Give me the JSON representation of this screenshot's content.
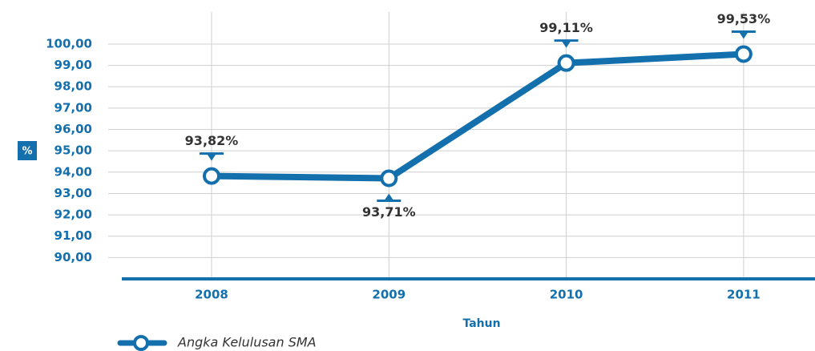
{
  "chart_data": {
    "type": "line",
    "y_label": "%",
    "x_label": "Tahun",
    "categories": [
      "2008",
      "2009",
      "2010",
      "2011"
    ],
    "series": [
      {
        "name": "Angka Kelulusan SMA",
        "color": "#1470ad",
        "values": [
          93.82,
          93.71,
          99.11,
          99.53
        ],
        "value_labels": [
          "93,82%",
          "93,71%",
          "99,11%",
          "99,53%"
        ]
      }
    ],
    "ylim": [
      89,
      101.5
    ],
    "yticks": [
      {
        "value": 90,
        "label": "90,00"
      },
      {
        "value": 91,
        "label": "91,00"
      },
      {
        "value": 92,
        "label": "92,00"
      },
      {
        "value": 93,
        "label": "93,00"
      },
      {
        "value": 94,
        "label": "94,00"
      },
      {
        "value": 95,
        "label": "95,00"
      },
      {
        "value": 96,
        "label": "96,00"
      },
      {
        "value": 97,
        "label": "97,00"
      },
      {
        "value": 98,
        "label": "98,00"
      },
      {
        "value": 99,
        "label": "99,00"
      },
      {
        "value": 100,
        "label": "100,00"
      }
    ],
    "grid": true
  }
}
